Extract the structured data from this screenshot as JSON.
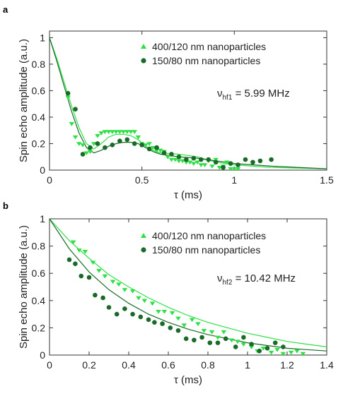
{
  "chart_data": [
    {
      "panel": "a",
      "type": "scatter",
      "xlabel": "τ (ms)",
      "ylabel": "Spin echo amplitude (a.u.)",
      "xlim": [
        0,
        1.5
      ],
      "ylim": [
        0,
        1.05
      ],
      "xticks": [
        0,
        0.5,
        1,
        1.5
      ],
      "xtick_labels": [
        "0",
        "0.5",
        "1",
        "1.5"
      ],
      "yticks": [
        0,
        0.2,
        0.4,
        0.6,
        0.8,
        1
      ],
      "ytick_labels": [
        "0",
        "0.2",
        "0.4",
        "0.6",
        "0.8",
        "1"
      ],
      "annotation": {
        "main": "ν",
        "sub": "hf1",
        "rest": " = 5.99 MHz"
      },
      "legend_position": "top-right",
      "series": [
        {
          "name": "400/120 nm nanoparticles",
          "marker": "triangle-down",
          "color": "#2ee046",
          "x": [
            0.1,
            0.12,
            0.14,
            0.16,
            0.18,
            0.2,
            0.22,
            0.24,
            0.26,
            0.28,
            0.3,
            0.32,
            0.34,
            0.36,
            0.38,
            0.4,
            0.42,
            0.44,
            0.46,
            0.48,
            0.5,
            0.52,
            0.54,
            0.56,
            0.58,
            0.6,
            0.62,
            0.64,
            0.66,
            0.68,
            0.7,
            0.72,
            0.74,
            0.76,
            0.78,
            0.8,
            0.82,
            0.84,
            0.86,
            0.88,
            0.9,
            0.92,
            0.94,
            0.96,
            0.98,
            1.0,
            1.02
          ],
          "y": [
            0.55,
            0.35,
            0.25,
            0.2,
            0.19,
            0.13,
            0.14,
            0.2,
            0.26,
            0.28,
            0.29,
            0.29,
            0.29,
            0.29,
            0.29,
            0.29,
            0.29,
            0.29,
            0.29,
            0.25,
            0.2,
            0.19,
            0.2,
            0.17,
            0.15,
            0.15,
            0.14,
            0.1,
            0.08,
            0.08,
            0.07,
            0.07,
            0.06,
            0.06,
            0.05,
            0.06,
            0.04,
            0.04,
            0.07,
            0.03,
            0.08,
            0.02,
            0.03,
            0.06,
            0.01,
            0.01,
            0.01
          ],
          "fit": [
            [
              0,
              1.0
            ],
            [
              0.04,
              0.84
            ],
            [
              0.08,
              0.66
            ],
            [
              0.12,
              0.48
            ],
            [
              0.16,
              0.32
            ],
            [
              0.2,
              0.2
            ],
            [
              0.24,
              0.16
            ],
            [
              0.28,
              0.2
            ],
            [
              0.32,
              0.25
            ],
            [
              0.36,
              0.27
            ],
            [
              0.4,
              0.27
            ],
            [
              0.44,
              0.26
            ],
            [
              0.48,
              0.23
            ],
            [
              0.52,
              0.18
            ],
            [
              0.56,
              0.15
            ],
            [
              0.6,
              0.13
            ],
            [
              0.7,
              0.12
            ],
            [
              0.8,
              0.1
            ],
            [
              0.9,
              0.06
            ],
            [
              1.0,
              0.04
            ],
            [
              1.2,
              0.02
            ],
            [
              1.5,
              0.01
            ]
          ]
        },
        {
          "name": "150/80 nm nanoparticles",
          "marker": "circle",
          "color": "#1a6b28",
          "x": [
            0.1,
            0.14,
            0.18,
            0.22,
            0.26,
            0.3,
            0.34,
            0.38,
            0.42,
            0.46,
            0.5,
            0.54,
            0.58,
            0.62,
            0.66,
            0.7,
            0.74,
            0.78,
            0.82,
            0.86,
            0.9,
            0.94,
            0.98,
            1.02,
            1.06,
            1.1,
            1.14,
            1.2
          ],
          "y": [
            0.58,
            0.46,
            0.12,
            0.17,
            0.2,
            0.17,
            0.19,
            0.22,
            0.23,
            0.2,
            0.19,
            0.16,
            0.17,
            0.13,
            0.12,
            0.1,
            0.08,
            0.09,
            0.08,
            0.08,
            0.06,
            0.02,
            0.05,
            0.04,
            0.08,
            0.06,
            0.07,
            0.08
          ],
          "fit": [
            [
              0,
              1.0
            ],
            [
              0.04,
              0.82
            ],
            [
              0.08,
              0.63
            ],
            [
              0.12,
              0.44
            ],
            [
              0.16,
              0.28
            ],
            [
              0.2,
              0.17
            ],
            [
              0.24,
              0.13
            ],
            [
              0.28,
              0.15
            ],
            [
              0.32,
              0.18
            ],
            [
              0.36,
              0.2
            ],
            [
              0.4,
              0.21
            ],
            [
              0.44,
              0.21
            ],
            [
              0.48,
              0.2
            ],
            [
              0.52,
              0.17
            ],
            [
              0.56,
              0.14
            ],
            [
              0.6,
              0.12
            ],
            [
              0.7,
              0.1
            ],
            [
              0.8,
              0.09
            ],
            [
              0.9,
              0.07
            ],
            [
              1.0,
              0.05
            ],
            [
              1.2,
              0.03
            ],
            [
              1.5,
              0.01
            ]
          ]
        }
      ]
    },
    {
      "panel": "b",
      "type": "scatter",
      "xlabel": "τ (ms)",
      "ylabel": "Spin echo amplitude (a.u.)",
      "xlim": [
        0,
        1.4
      ],
      "ylim": [
        0,
        1.0
      ],
      "xticks": [
        0,
        0.2,
        0.4,
        0.6,
        0.8,
        1,
        1.2,
        1.4
      ],
      "xtick_labels": [
        "0",
        "0.2",
        "0.4",
        "0.6",
        "0.8",
        "1",
        "1.2",
        "1.4"
      ],
      "yticks": [
        0,
        0.2,
        0.4,
        0.6,
        0.8,
        1
      ],
      "ytick_labels": [
        "0",
        "0.2",
        "0.4",
        "0.6",
        "0.8",
        "1"
      ],
      "annotation": {
        "main": "ν",
        "sub": "hf2",
        "rest": " = 10.42 MHz"
      },
      "legend_position": "top-right",
      "series": [
        {
          "name": "400/120 nm nanoparticles",
          "marker": "triangle-down",
          "color": "#2ee046",
          "x": [
            0.12,
            0.15,
            0.18,
            0.22,
            0.25,
            0.28,
            0.32,
            0.35,
            0.38,
            0.42,
            0.45,
            0.48,
            0.52,
            0.55,
            0.58,
            0.62,
            0.65,
            0.68,
            0.72,
            0.75,
            0.78,
            0.82,
            0.85,
            0.88,
            0.92,
            0.95,
            0.98,
            1.02,
            1.05,
            1.08,
            1.12,
            1.15,
            1.18,
            1.22,
            1.25,
            1.28
          ],
          "y": [
            0.83,
            0.77,
            0.76,
            0.68,
            0.62,
            0.58,
            0.54,
            0.52,
            0.48,
            0.47,
            0.42,
            0.4,
            0.38,
            0.32,
            0.32,
            0.31,
            0.27,
            0.22,
            0.26,
            0.23,
            0.18,
            0.17,
            0.13,
            0.17,
            0.11,
            0.1,
            0.08,
            0.06,
            0.03,
            0.05,
            0.02,
            0.04,
            0.01,
            0.02,
            0.03,
            0.01
          ],
          "fit": [
            [
              0,
              1.0
            ],
            [
              0.1,
              0.84
            ],
            [
              0.2,
              0.71
            ],
            [
              0.3,
              0.59
            ],
            [
              0.4,
              0.5
            ],
            [
              0.5,
              0.42
            ],
            [
              0.6,
              0.35
            ],
            [
              0.7,
              0.29
            ],
            [
              0.8,
              0.24
            ],
            [
              0.9,
              0.2
            ],
            [
              1.0,
              0.16
            ],
            [
              1.1,
              0.13
            ],
            [
              1.2,
              0.1
            ],
            [
              1.3,
              0.08
            ],
            [
              1.4,
              0.06
            ]
          ]
        },
        {
          "name": "150/80 nm nanoparticles",
          "marker": "circle",
          "color": "#1a6b28",
          "x": [
            0.1,
            0.13,
            0.16,
            0.2,
            0.23,
            0.27,
            0.3,
            0.34,
            0.38,
            0.42,
            0.46,
            0.5,
            0.53,
            0.57,
            0.61,
            0.65,
            0.69,
            0.73,
            0.77,
            0.81,
            0.85,
            0.89,
            0.94,
            0.98,
            1.02,
            1.06,
            1.1,
            1.14,
            1.18
          ],
          "y": [
            0.7,
            0.67,
            0.58,
            0.57,
            0.44,
            0.42,
            0.35,
            0.3,
            0.34,
            0.3,
            0.28,
            0.26,
            0.24,
            0.23,
            0.2,
            0.18,
            0.12,
            0.11,
            0.13,
            0.09,
            0.09,
            0.12,
            0.06,
            0.13,
            0.08,
            0.03,
            0.05,
            0.09,
            0.06
          ],
          "fit": [
            [
              0,
              1.0
            ],
            [
              0.1,
              0.78
            ],
            [
              0.2,
              0.61
            ],
            [
              0.3,
              0.48
            ],
            [
              0.4,
              0.38
            ],
            [
              0.5,
              0.3
            ],
            [
              0.6,
              0.24
            ],
            [
              0.7,
              0.19
            ],
            [
              0.8,
              0.15
            ],
            [
              0.9,
              0.12
            ],
            [
              1.0,
              0.09
            ],
            [
              1.1,
              0.07
            ],
            [
              1.2,
              0.05
            ],
            [
              1.3,
              0.04
            ],
            [
              1.4,
              0.03
            ]
          ]
        }
      ]
    }
  ]
}
